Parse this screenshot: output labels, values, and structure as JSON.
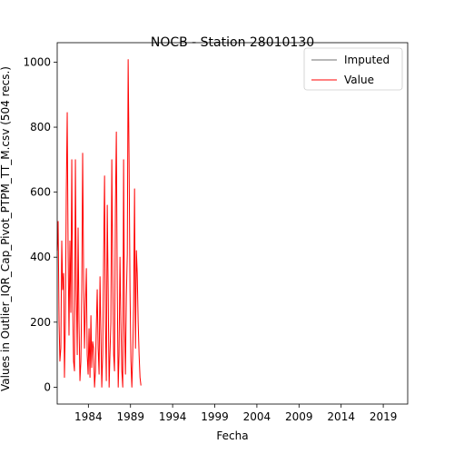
{
  "chart_data": {
    "type": "line",
    "title": "NOCB - Station 28010130",
    "xlabel": "Fecha",
    "ylabel": "Values in Outlier_IQR_Cap_Pivot_PTPM_TT_M.csv (504 recs.)",
    "legend": "upper right",
    "xlim": [
      1980.3,
      2021.9
    ],
    "ylim": [
      -52,
      1060
    ],
    "xticks": [
      1984,
      1989,
      1994,
      1999,
      2004,
      2009,
      2014,
      2019
    ],
    "yticks": [
      0,
      200,
      400,
      600,
      800,
      1000
    ],
    "x": [
      1980.3,
      1980.41,
      1980.52,
      1980.62,
      1980.73,
      1980.84,
      1980.95,
      1981.06,
      1981.16,
      1981.27,
      1981.38,
      1981.49,
      1981.6,
      1981.7,
      1981.81,
      1981.92,
      1982.03,
      1982.14,
      1982.24,
      1982.35,
      1982.46,
      1982.57,
      1982.68,
      1982.78,
      1982.89,
      1983.0,
      1983.11,
      1983.22,
      1983.32,
      1983.43,
      1983.54,
      1983.65,
      1983.76,
      1983.86,
      1983.97,
      1984.08,
      1984.19,
      1984.3,
      1984.4,
      1984.51,
      1984.62,
      1984.73,
      1984.84,
      1984.94,
      1985.05,
      1985.16,
      1985.27,
      1985.38,
      1985.48,
      1985.59,
      1985.7,
      1985.81,
      1985.92,
      1986.02,
      1986.13,
      1986.24,
      1986.35,
      1986.46,
      1986.56,
      1986.67,
      1986.78,
      1986.89,
      1987.0,
      1987.1,
      1987.21,
      1987.32,
      1987.43,
      1987.54,
      1987.64,
      1987.75,
      1987.86,
      1987.97,
      1988.08,
      1988.18,
      1988.29,
      1988.4,
      1988.51,
      1988.62,
      1988.72,
      1988.83,
      1988.94,
      1989.05,
      1989.16,
      1989.26,
      1989.37,
      1989.48,
      1989.59,
      1989.7,
      1989.8,
      1989.91,
      1990.02,
      1990.13,
      1990.24
    ],
    "series": [
      {
        "name": "Imputed",
        "color": "#404040",
        "width": 0.8,
        "values": [
          null,
          null,
          null,
          null,
          null,
          null,
          null,
          null,
          null,
          null,
          null,
          null,
          null,
          null,
          null,
          null,
          null,
          null,
          null,
          null,
          null,
          null,
          null,
          null,
          null,
          null,
          null,
          null,
          null,
          null,
          null,
          null,
          null,
          null,
          null,
          null,
          null,
          null,
          null,
          null,
          null,
          null,
          null,
          null,
          null,
          null,
          null,
          null,
          null,
          null,
          null,
          null,
          null,
          null,
          null,
          null,
          null,
          null,
          null,
          null,
          null,
          null,
          null,
          null,
          null,
          null,
          null,
          null,
          null,
          null,
          null,
          null,
          null,
          null,
          null,
          null,
          null,
          null,
          null,
          null,
          null,
          null,
          null,
          null,
          null,
          null,
          null,
          null,
          null,
          null,
          null,
          null,
          null
        ]
      },
      {
        "name": "Value",
        "color": "#ff0000",
        "width": 1,
        "values": [
          420,
          510,
          200,
          80,
          120,
          450,
          300,
          350,
          30,
          200,
          600,
          845,
          400,
          160,
          450,
          230,
          700,
          250,
          80,
          50,
          700,
          300,
          100,
          490,
          200,
          20,
          80,
          300,
          720,
          350,
          120,
          250,
          365,
          100,
          40,
          180,
          30,
          220,
          60,
          140,
          120,
          0,
          50,
          180,
          300,
          120,
          40,
          340,
          180,
          0,
          100,
          400,
          650,
          200,
          20,
          560,
          300,
          0,
          100,
          200,
          700,
          350,
          100,
          50,
          550,
          785,
          300,
          0,
          100,
          400,
          200,
          50,
          0,
          700,
          200,
          40,
          280,
          410,
          1008,
          700,
          300,
          80,
          0,
          100,
          250,
          610,
          120,
          420,
          350,
          200,
          100,
          30,
          5
        ]
      }
    ]
  }
}
